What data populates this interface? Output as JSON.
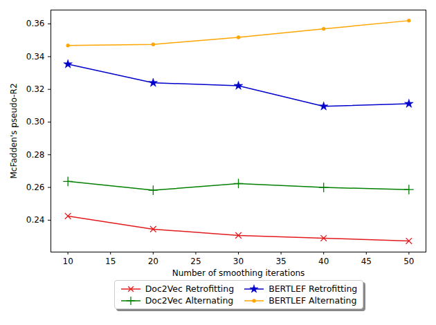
{
  "chart_data": {
    "type": "line",
    "xlabel": "Number of smoothing iterations",
    "ylabel": "McFadden's pseudo-R2",
    "x": [
      10,
      20,
      30,
      40,
      50
    ],
    "series": [
      {
        "name": "Doc2Vec Retrofitting",
        "color": "#e41a1c",
        "marker": "x",
        "values": [
          0.2425,
          0.2345,
          0.2307,
          0.229,
          0.2273
        ]
      },
      {
        "name": "Doc2Vec Alternating",
        "color": "#008000",
        "marker": "plus",
        "values": [
          0.2637,
          0.2583,
          0.2624,
          0.26,
          0.2587
        ]
      },
      {
        "name": "BERTLEF Retrofitting",
        "color": "#0000cc",
        "marker": "star",
        "values": [
          0.3354,
          0.324,
          0.3222,
          0.3096,
          0.3112
        ]
      },
      {
        "name": "BERTLEF Alternating",
        "color": "#ffa500",
        "marker": "point",
        "values": [
          0.3468,
          0.3475,
          0.3518,
          0.357,
          0.362
        ]
      }
    ],
    "xlim": [
      8,
      52
    ],
    "xticks": [
      10,
      15,
      20,
      25,
      30,
      35,
      40,
      45,
      50
    ],
    "ylim": [
      0.2205,
      0.3685
    ],
    "yticks": [
      0.24,
      0.26,
      0.28,
      {
        "value": 0.3,
        "label": "0.30"
      },
      0.32,
      0.34,
      0.36
    ],
    "grid": false,
    "legend": "bottom"
  }
}
